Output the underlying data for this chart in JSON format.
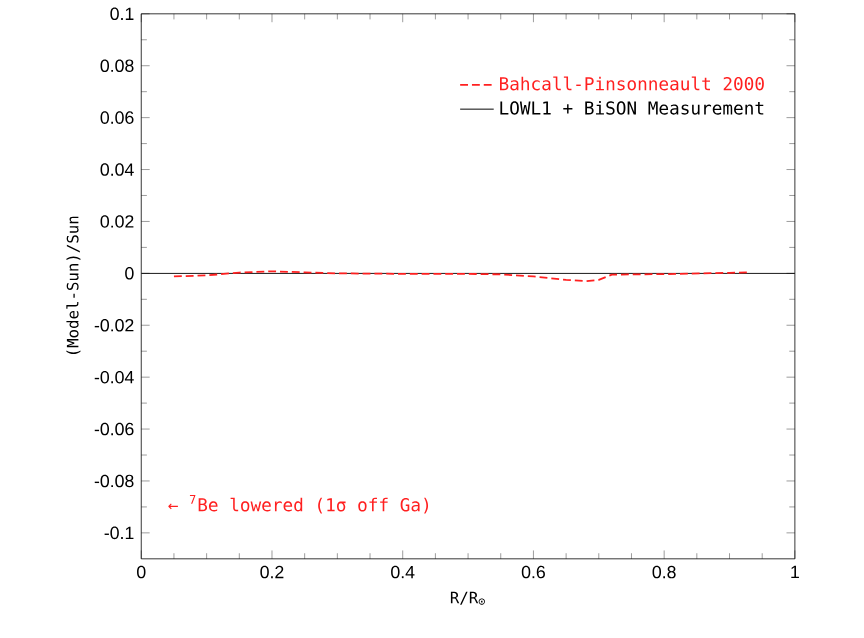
{
  "chart_data": {
    "type": "line",
    "xlabel": "R/R$_{⊙}$",
    "ylabel": "(Model-Sun)/Sun",
    "xlim": [
      0,
      1
    ],
    "xticks": [
      0,
      0.2,
      0.4,
      0.6,
      0.8,
      1
    ],
    "ylim": [
      -0.11,
      0.1
    ],
    "yticks": [
      -0.1,
      -0.08,
      -0.06,
      -0.04,
      -0.02,
      0,
      0.02,
      0.04,
      0.06,
      0.08,
      0.1
    ],
    "legend": "top right",
    "annotations": [
      "← $^{7}$Be lowered (1σ off Ga)"
    ],
    "series": [
      {
        "name": "Bahcall-Pinsonneault 2000",
        "color": "#ff2020",
        "line_style": "dashed",
        "x": [
          0.05,
          0.1,
          0.15,
          0.2,
          0.25,
          0.3,
          0.4,
          0.5,
          0.55,
          0.6,
          0.65,
          0.68,
          0.7,
          0.72,
          0.8,
          0.9,
          0.93
        ],
        "values": [
          -0.0012,
          -0.0008,
          0.0003,
          0.0008,
          0.0004,
          0,
          -0.0002,
          -0.0002,
          -0.0004,
          -0.0012,
          -0.0025,
          -0.003,
          -0.0025,
          -0.0005,
          -0.0003,
          0.0002,
          0.0004
        ]
      },
      {
        "name": "LOWL1 + BiSON Measurement",
        "color": "#000000",
        "line_style": "solid",
        "x": [
          0,
          1
        ],
        "values": [
          0,
          0
        ]
      }
    ]
  }
}
